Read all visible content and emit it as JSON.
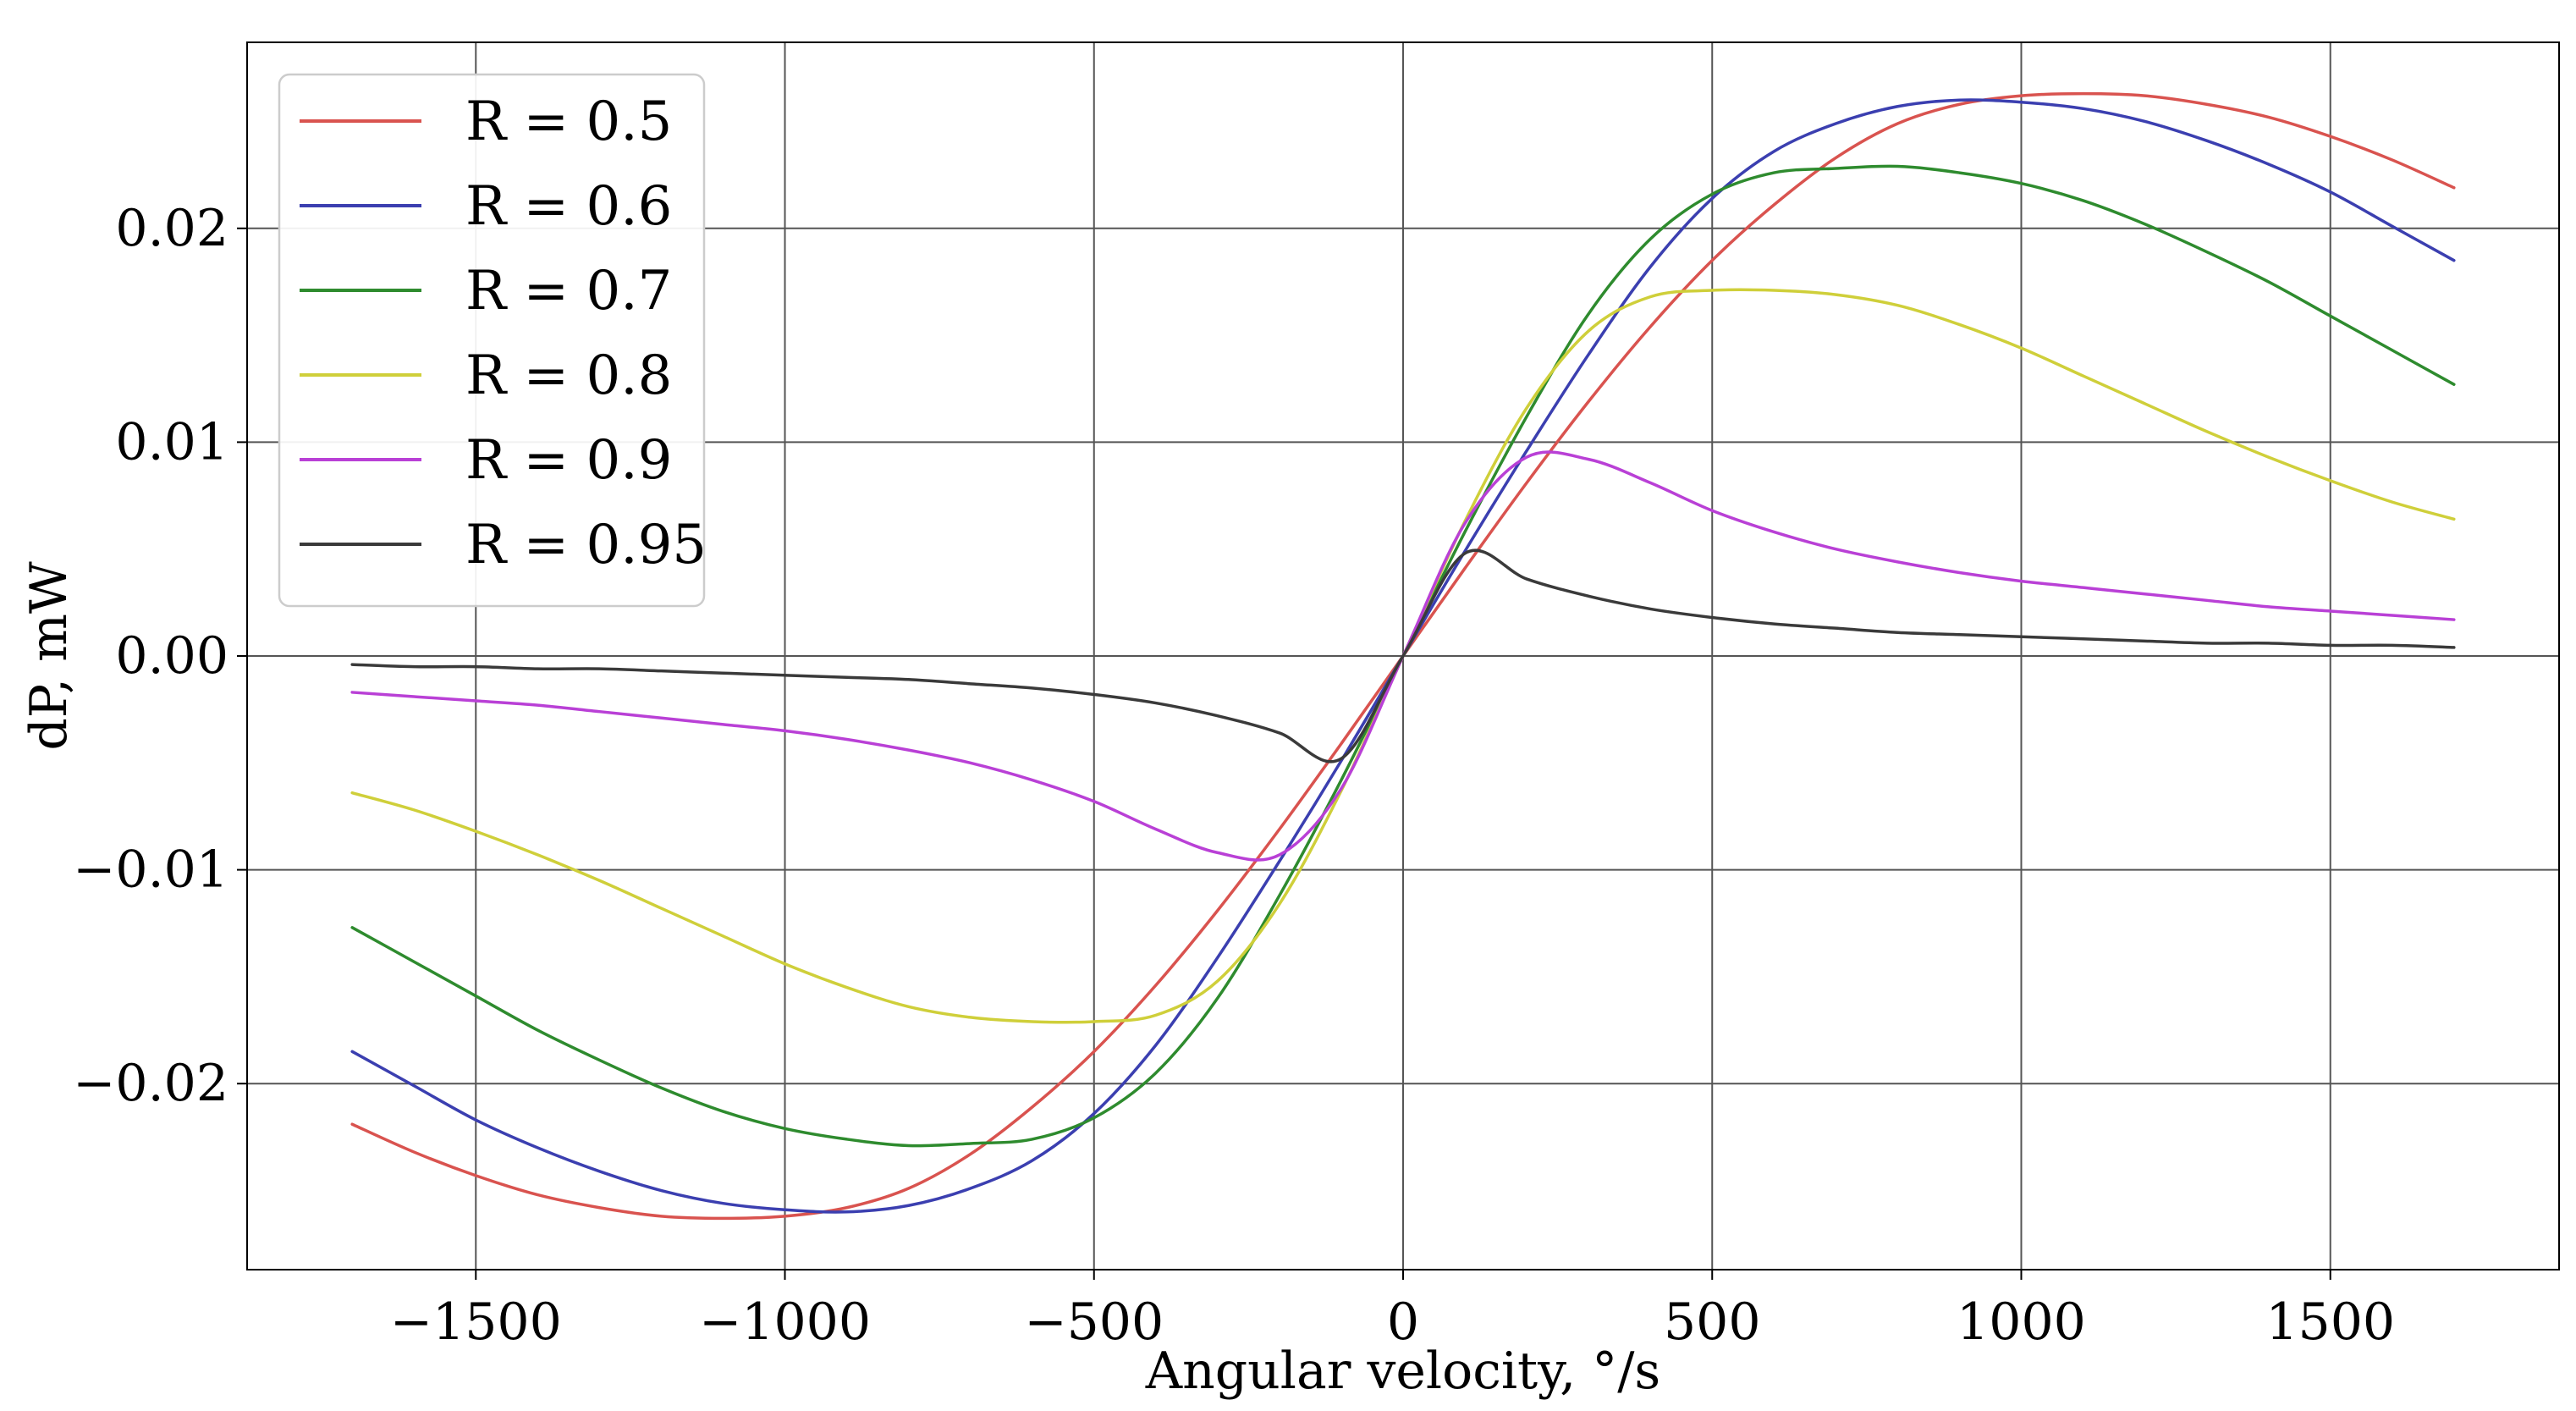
{
  "chart_data": {
    "type": "line",
    "title": "",
    "xlabel": "Angular velocity, °/s",
    "ylabel": "dP, mW",
    "xlim": [
      -1870,
      1870
    ],
    "ylim": [
      -0.0287,
      0.0287
    ],
    "xticks": [
      -1500,
      -1000,
      -500,
      0,
      500,
      1000,
      1500
    ],
    "xtick_labels": [
      "−1500",
      "−1000",
      "−500",
      "0",
      "500",
      "1000",
      "1500"
    ],
    "yticks": [
      -0.02,
      -0.01,
      0.0,
      0.01,
      0.02
    ],
    "ytick_labels": [
      "−0.02",
      "−0.01",
      "0.00",
      "0.01",
      "0.02"
    ],
    "grid": true,
    "legend_position": "top-left",
    "x": [
      -1700,
      -1600,
      -1500,
      -1400,
      -1300,
      -1200,
      -1100,
      -1000,
      -900,
      -800,
      -700,
      -600,
      -500,
      -400,
      -300,
      -200,
      -100,
      0,
      100,
      200,
      300,
      400,
      500,
      600,
      700,
      800,
      900,
      1000,
      1100,
      1200,
      1300,
      1400,
      1500,
      1600,
      1700
    ],
    "series": [
      {
        "name": "R = 0.5",
        "color": "#d9534f",
        "values": [
          -0.0219,
          -0.0232,
          -0.0243,
          -0.0252,
          -0.0258,
          -0.0262,
          -0.0263,
          -0.0262,
          -0.0258,
          -0.0249,
          -0.0233,
          -0.0211,
          -0.0185,
          -0.0154,
          -0.0119,
          -0.0081,
          -0.0041,
          0.0,
          0.0041,
          0.0081,
          0.0119,
          0.0154,
          0.0185,
          0.0211,
          0.0233,
          0.0249,
          0.0258,
          0.0262,
          0.0263,
          0.0262,
          0.0258,
          0.0252,
          0.0243,
          0.0232,
          0.0219
        ]
      },
      {
        "name": "R = 0.6",
        "color": "#3b3fb0",
        "values": [
          -0.0185,
          -0.0201,
          -0.0217,
          -0.023,
          -0.0241,
          -0.025,
          -0.0256,
          -0.0259,
          -0.026,
          -0.0257,
          -0.0249,
          -0.0236,
          -0.0214,
          -0.0182,
          -0.0141,
          -0.0096,
          -0.0049,
          0.0,
          0.0049,
          0.0096,
          0.0141,
          0.0182,
          0.0214,
          0.0236,
          0.0249,
          0.0257,
          0.026,
          0.0259,
          0.0256,
          0.025,
          0.0241,
          0.023,
          0.0217,
          0.0201,
          0.0185
        ]
      },
      {
        "name": "R = 0.7",
        "color": "#2e8b2e",
        "values": [
          -0.0127,
          -0.0143,
          -0.0159,
          -0.0175,
          -0.0189,
          -0.0202,
          -0.0213,
          -0.0221,
          -0.0226,
          -0.0229,
          -0.0228,
          -0.0226,
          -0.0216,
          -0.0195,
          -0.016,
          -0.0112,
          -0.0058,
          0.0,
          0.0058,
          0.0112,
          0.016,
          0.0195,
          0.0216,
          0.0226,
          0.0228,
          0.0229,
          0.0226,
          0.0221,
          0.0213,
          0.0202,
          0.0189,
          0.0175,
          0.0159,
          0.0143,
          0.0127
        ]
      },
      {
        "name": "R = 0.8",
        "color": "#cfcf3a",
        "values": [
          -0.0064,
          -0.0072,
          -0.0082,
          -0.0093,
          -0.0105,
          -0.0118,
          -0.0131,
          -0.0144,
          -0.0155,
          -0.0164,
          -0.0169,
          -0.0171,
          -0.0171,
          -0.0168,
          -0.0152,
          -0.0116,
          -0.0063,
          0.0,
          0.0063,
          0.0116,
          0.0152,
          0.0168,
          0.0171,
          0.0171,
          0.0169,
          0.0164,
          0.0155,
          0.0144,
          0.0131,
          0.0118,
          0.0105,
          0.0093,
          0.0082,
          0.0072,
          0.0064
        ]
      },
      {
        "name": "R = 0.9",
        "color": "#b940d6",
        "values": [
          -0.0017,
          -0.0019,
          -0.0021,
          -0.0023,
          -0.0026,
          -0.0029,
          -0.0032,
          -0.0035,
          -0.0039,
          -0.0044,
          -0.005,
          -0.0058,
          -0.0068,
          -0.0081,
          -0.0092,
          -0.0093,
          -0.0062,
          0.0,
          0.0062,
          0.0093,
          0.0092,
          0.0081,
          0.0068,
          0.0058,
          0.005,
          0.0044,
          0.0039,
          0.0035,
          0.0032,
          0.0029,
          0.0026,
          0.0023,
          0.0021,
          0.0019,
          0.0017
        ]
      },
      {
        "name": "R = 0.95",
        "color": "#3a3a3a",
        "values": [
          -0.0004,
          -0.0005,
          -0.0005,
          -0.0006,
          -0.0006,
          -0.0007,
          -0.0008,
          -0.0009,
          -0.001,
          -0.0011,
          -0.0013,
          -0.0015,
          -0.0018,
          -0.0022,
          -0.0028,
          -0.0036,
          -0.0048,
          0.0,
          0.0048,
          0.0036,
          0.0028,
          0.0022,
          0.0018,
          0.0015,
          0.0013,
          0.0011,
          0.001,
          0.0009,
          0.0008,
          0.0007,
          0.0006,
          0.0006,
          0.0005,
          0.0005,
          0.0004
        ]
      }
    ]
  }
}
